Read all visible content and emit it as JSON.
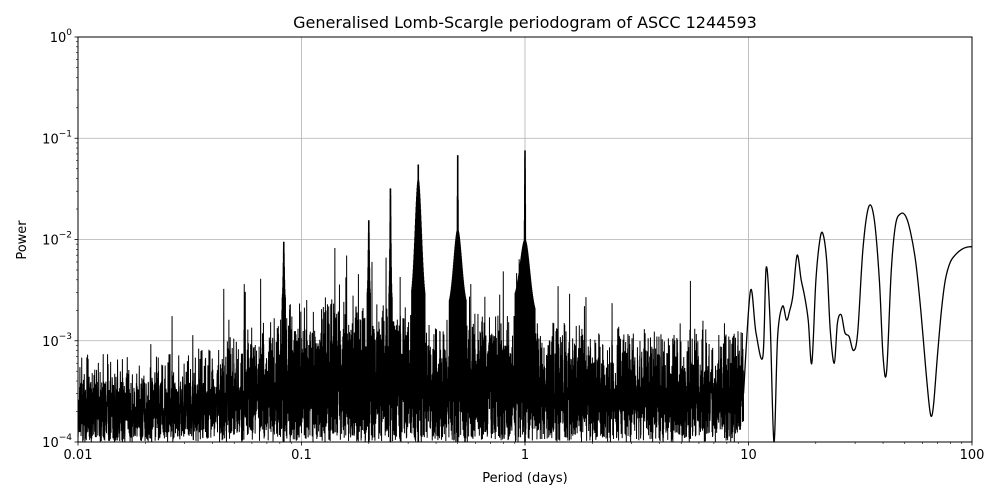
{
  "chart_data": {
    "type": "line",
    "title": "Generalised Lomb-Scargle periodogram of ASCC 1244593",
    "xlabel": "Period (days)",
    "ylabel": "Power",
    "x_scale": "log",
    "y_scale": "log",
    "xlim": [
      0.01,
      100
    ],
    "ylim": [
      0.0001,
      1
    ],
    "grid": true,
    "line_color": "#000000",
    "x_ticks": [
      {
        "value": 0.01,
        "label": "0.01"
      },
      {
        "value": 0.1,
        "label": "0.1"
      },
      {
        "value": 1,
        "label": "1"
      },
      {
        "value": 10,
        "label": "10"
      },
      {
        "value": 100,
        "label": "100"
      }
    ],
    "y_ticks": [
      {
        "value": 0.0001,
        "base": "10",
        "exp": "−4"
      },
      {
        "value": 0.001,
        "base": "10",
        "exp": "−3"
      },
      {
        "value": 0.01,
        "base": "10",
        "exp": "−2"
      },
      {
        "value": 0.1,
        "base": "10",
        "exp": "−1"
      },
      {
        "value": 1,
        "base": "10",
        "exp": "0"
      }
    ],
    "peaks": [
      {
        "period": 1.0,
        "power": 0.076
      },
      {
        "period": 0.5,
        "power": 0.068
      },
      {
        "period": 0.333,
        "power": 0.055
      },
      {
        "period": 0.25,
        "power": 0.032
      },
      {
        "period": 0.2,
        "power": 0.0155
      },
      {
        "period": 0.0833,
        "power": 0.0095
      },
      {
        "period": 34.5,
        "power": 0.021
      },
      {
        "period": 49.5,
        "power": 0.018
      },
      {
        "period": 21.5,
        "power": 0.0115
      },
      {
        "period": 16.5,
        "power": 0.007
      }
    ],
    "long_period_curve": {
      "periods": [
        9.5,
        10.2,
        10.8,
        11.6,
        12.0,
        12.5,
        13.0,
        13.5,
        14.2,
        14.8,
        15.3,
        15.8,
        16.5,
        17.2,
        17.8,
        18.5,
        19.2,
        20.0,
        20.8,
        21.5,
        22.4,
        23.2,
        24.2,
        25.0,
        26.0,
        27.0,
        28.2,
        29.5,
        30.8,
        32.5,
        34.5,
        36.5,
        38.5,
        40.0,
        41.5,
        43.5,
        45.5,
        48.0,
        50.5,
        53.0,
        56.0,
        59.0,
        62.0,
        64.5,
        66.0,
        67.5,
        70.0,
        73.0,
        76.0,
        80.0,
        85.0,
        90.0,
        95.0,
        100.0
      ],
      "powers": [
        0.0003,
        0.0031,
        0.0012,
        0.0007,
        0.0053,
        0.0015,
        0.0001,
        0.0011,
        0.0022,
        0.0016,
        0.002,
        0.0028,
        0.007,
        0.004,
        0.0028,
        0.0016,
        0.0006,
        0.0038,
        0.0095,
        0.0115,
        0.006,
        0.0013,
        0.0006,
        0.0015,
        0.0018,
        0.0012,
        0.0011,
        0.0008,
        0.0012,
        0.008,
        0.021,
        0.016,
        0.004,
        0.0007,
        0.0005,
        0.0048,
        0.014,
        0.018,
        0.017,
        0.012,
        0.006,
        0.002,
        0.00055,
        0.00022,
        0.00018,
        0.00025,
        0.0007,
        0.002,
        0.004,
        0.006,
        0.0072,
        0.008,
        0.0084,
        0.0085
      ]
    }
  }
}
